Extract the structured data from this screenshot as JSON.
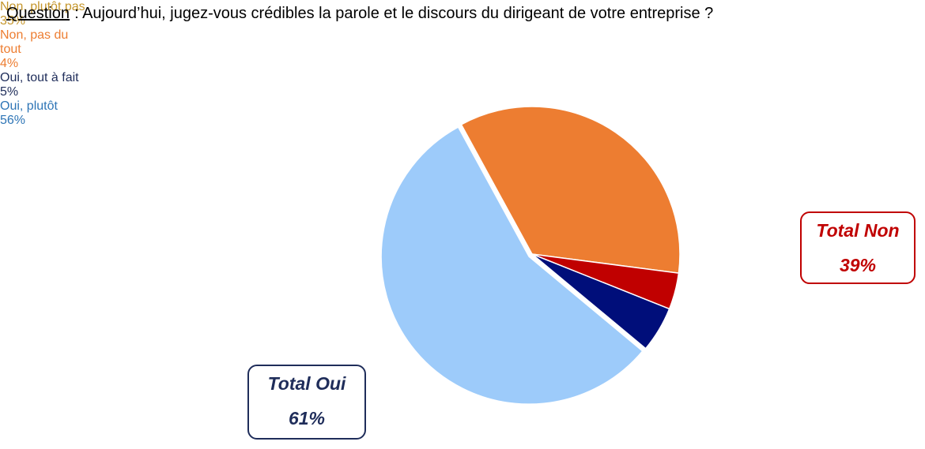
{
  "header": {
    "label": "Question",
    "text": ": Aujourd’hui, jugez-vous crédibles la parole et le discours du dirigeant de votre entreprise ?"
  },
  "chart_data": {
    "type": "pie",
    "categories": [
      "Non, plutôt pas",
      "Non, pas du tout",
      "Oui, tout à fait",
      "Oui, plutôt"
    ],
    "values": [
      35,
      4,
      5,
      56
    ],
    "value_labels": [
      "35%",
      "4%",
      "5%",
      "56%"
    ],
    "colors": [
      "#ED7D31",
      "#C00000",
      "#000E7A",
      "#9DCBFA"
    ],
    "label_colors": [
      "#C5962C",
      "#ED7D31",
      "#1F2D5A",
      "#2E75B6"
    ],
    "annotations": [
      {
        "text": "Total Non",
        "value": 39,
        "value_label": "39%",
        "color": "#C00000"
      },
      {
        "text": "Total Oui",
        "value": 61,
        "value_label": "61%",
        "color": "#1F2D5A"
      }
    ]
  }
}
